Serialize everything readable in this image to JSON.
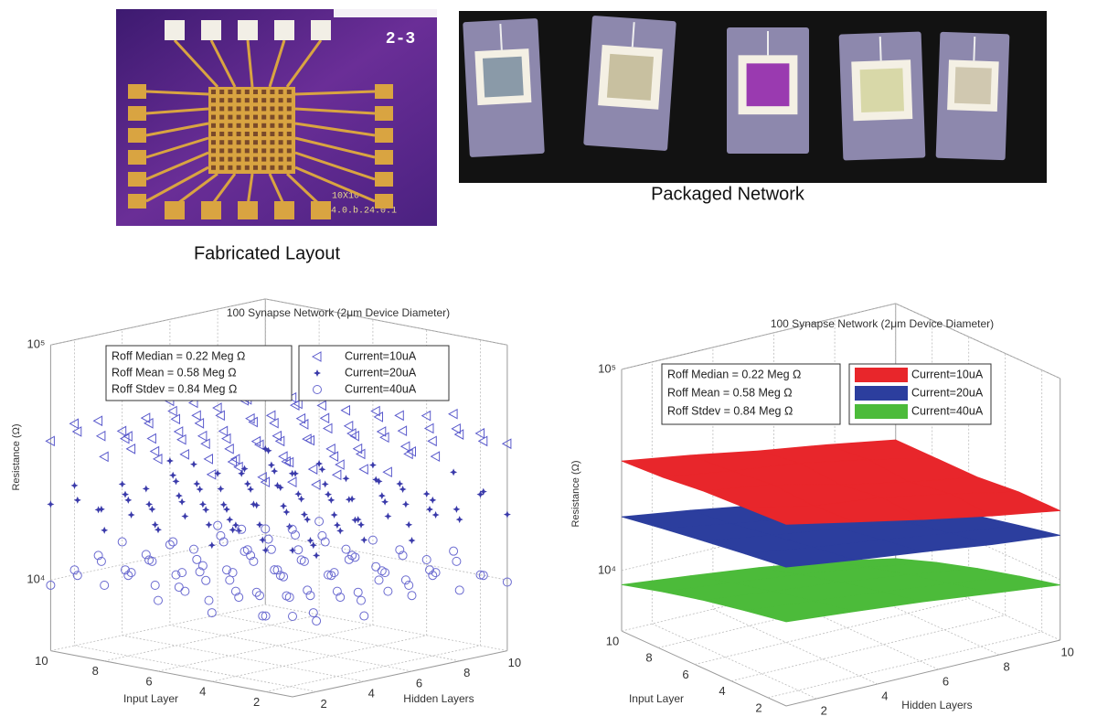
{
  "photos": [
    {
      "caption": "Fabricated Layout",
      "labels": [
        "2-3",
        "10X10",
        "4.0.b.24.0.1"
      ]
    },
    {
      "caption": "Packaged Network"
    }
  ],
  "chart_data": [
    {
      "type": "scatter3d",
      "title": "100 Synapse Network (2μm Device Diameter)",
      "xlabel": "Hidden Layers",
      "ylabel": "Input Layer",
      "zlabel": "Resistance (Ω)",
      "x": [
        1,
        2,
        3,
        4,
        5,
        6,
        7,
        8,
        9,
        10
      ],
      "y": [
        1,
        2,
        3,
        4,
        5,
        6,
        7,
        8,
        9,
        10
      ],
      "xlim": [
        1,
        10
      ],
      "ylim": [
        1,
        10
      ],
      "zlim": [
        5000,
        100000
      ],
      "zscale": "log",
      "xticks": [
        2,
        4,
        6,
        8,
        10
      ],
      "yticks": [
        2,
        4,
        6,
        8,
        10
      ],
      "zticks": [
        {
          "value": 10000,
          "label": "10⁴"
        },
        {
          "value": 100000,
          "label": "10⁵"
        }
      ],
      "grid": true,
      "legend": "upper right",
      "annotations": [
        "Roff Median = 0.22 Meg Ω",
        "Roff   Mean = 0.58 Meg Ω",
        "Roff  Stdev = 0.84 Meg Ω"
      ],
      "series": [
        {
          "name": "Current=10uA",
          "color": "#5b5bcc",
          "marker": "triangle-left",
          "values": [
            [
              41000,
              38000,
              44000,
              40000,
              37000,
              43000,
              39000,
              46000,
              41000,
              38000
            ],
            [
              39000,
              45000,
              40000,
              36000,
              42000,
              47000,
              38000,
              41000,
              44000,
              40000
            ],
            [
              43000,
              37000,
              41000,
              48000,
              39000,
              40000,
              45000,
              37000,
              42000,
              46000
            ],
            [
              38000,
              42000,
              46000,
              39000,
              44000,
              38000,
              41000,
              47000,
              39000,
              43000
            ],
            [
              44000,
              40000,
              37000,
              43000,
              41000,
              46000,
              42000,
              38000,
              45000,
              41000
            ],
            [
              40000,
              46000,
              42000,
              38000,
              47000,
              39000,
              44000,
              42000,
              37000,
              48000
            ],
            [
              42000,
              39000,
              45000,
              41000,
              38000,
              44000,
              40000,
              46000,
              43000,
              39000
            ],
            [
              37000,
              43000,
              40000,
              46000,
              42000,
              37000,
              48000,
              39000,
              41000,
              45000
            ],
            [
              45000,
              41000,
              38000,
              42000,
              45000,
              41000,
              39000,
              43000,
              47000,
              40000
            ],
            [
              39000,
              44000,
              43000,
              37000,
              40000,
              45000,
              42000,
              38000,
              44000,
              42000
            ]
          ]
        },
        {
          "name": "Current=20uA",
          "color": "#3a3aaa",
          "marker": "star",
          "values": [
            [
              21000,
              19000,
              23000,
              20000,
              24000,
              18000,
              22000,
              20000,
              25000,
              19000
            ],
            [
              20000,
              24000,
              19000,
              22000,
              21000,
              25000,
              19000,
              23000,
              20000,
              22000
            ],
            [
              23000,
              20000,
              25000,
              18000,
              22000,
              20000,
              24000,
              21000,
              19000,
              26000
            ],
            [
              19000,
              22000,
              21000,
              24000,
              20000,
              23000,
              18000,
              25000,
              22000,
              20000
            ],
            [
              24000,
              21000,
              19000,
              23000,
              26000,
              19000,
              22000,
              20000,
              23000,
              21000
            ],
            [
              20000,
              25000,
              22000,
              19000,
              21000,
              24000,
              20000,
              22000,
              18000,
              24000
            ],
            [
              22000,
              19000,
              24000,
              21000,
              19000,
              22000,
              25000,
              19000,
              23000,
              20000
            ],
            [
              18000,
              23000,
              20000,
              25000,
              22000,
              18000,
              21000,
              24000,
              21000,
              22000
            ],
            [
              23000,
              20000,
              22000,
              19000,
              24000,
              21000,
              19000,
              22000,
              25000,
              19000
            ],
            [
              21000,
              24000,
              18000,
              22000,
              20000,
              25000,
              23000,
              20000,
              19000,
              23000
            ]
          ]
        },
        {
          "name": "Current=40uA",
          "color": "#6a6ad0",
          "marker": "circle",
          "values": [
            [
              11000,
              10000,
              12000,
              9500,
              11500,
              10500,
              12500,
              10000,
              11000,
              9800
            ],
            [
              10500,
              12000,
              9800,
              11500,
              10000,
              12500,
              10500,
              11000,
              12000,
              10000
            ],
            [
              12000,
              9500,
              11000,
              10500,
              12500,
              9800,
              11500,
              10000,
              10500,
              12000
            ],
            [
              9800,
              11500,
              10500,
              12000,
              10000,
              11000,
              12500,
              9500,
              11500,
              10500
            ],
            [
              11500,
              10000,
              12500,
              9800,
              11000,
              12000,
              10000,
              11500,
              9800,
              11000
            ],
            [
              10000,
              12500,
              11000,
              10500,
              12000,
              10500,
              11000,
              12500,
              10000,
              11500
            ],
            [
              12500,
              10500,
              9800,
              11500,
              10500,
              11500,
              9500,
              11000,
              12000,
              10000
            ],
            [
              10500,
              11000,
              12000,
              10000,
              9800,
              12500,
              11000,
              10500,
              11500,
              12500
            ],
            [
              11000,
              12000,
              10500,
              11000,
              12500,
              10000,
              12000,
              9800,
              10500,
              11000
            ],
            [
              9500,
              10500,
              11500,
              12500,
              10500,
              11000,
              10000,
              12000,
              11000,
              10500
            ]
          ]
        }
      ]
    },
    {
      "type": "surface3d",
      "title": "100 Synapse Network (2μm Device Diameter)",
      "xlabel": "Hidden Layers",
      "ylabel": "Input Layer",
      "zlabel": "Resistance (Ω)",
      "x": [
        1,
        3.25,
        5.5,
        7.75,
        10
      ],
      "y": [
        1,
        3.25,
        5.5,
        7.75,
        10
      ],
      "xlim": [
        1,
        10
      ],
      "ylim": [
        1,
        10
      ],
      "zlim": [
        5000,
        100000
      ],
      "zscale": "log",
      "xticks": [
        2,
        4,
        6,
        8,
        10
      ],
      "yticks": [
        2,
        4,
        6,
        8,
        10
      ],
      "zticks": [
        {
          "value": 10000,
          "label": "10⁴"
        },
        {
          "value": 100000,
          "label": "10⁵"
        }
      ],
      "grid": true,
      "legend": "upper right",
      "annotations": [
        "Roff Median = 0.22 Meg Ω",
        "Roff   Mean = 0.58 Meg Ω",
        "Roff  Stdev = 0.84 Meg Ω"
      ],
      "series": [
        {
          "name": "Current=10uA",
          "color": "#e8262b",
          "values": [
            [
              40000,
              34000,
              29000,
              25000,
              22000
            ],
            [
              39000,
              33000,
              30000,
              26000,
              22000
            ],
            [
              38000,
              34000,
              28000,
              24000,
              21000
            ],
            [
              36000,
              32000,
              29000,
              25000,
              21000
            ],
            [
              35000,
              31000,
              27000,
              24000,
              21000
            ]
          ]
        },
        {
          "name": "Current=20uA",
          "color": "#2c3e9e",
          "values": [
            [
              24500,
              22000,
              20000,
              18000,
              16600
            ],
            [
              23000,
              20500,
              18500,
              16500,
              15000
            ],
            [
              21500,
              19000,
              17000,
              15000,
              13500
            ],
            [
              20000,
              17500,
              15500,
              13500,
              11800
            ],
            [
              18500,
              16500,
              14500,
              12300,
              10200
            ]
          ]
        },
        {
          "name": "Current=40uA",
          "color": "#4cbb3a",
          "values": [
            [
              13100,
              12200,
              11300,
              10300,
              9400
            ],
            [
              12000,
              11100,
              10200,
              9300,
              8400
            ],
            [
              10900,
              10000,
              9200,
              8300,
              7400
            ],
            [
              9700,
              8900,
              8100,
              7300,
              6400
            ],
            [
              8500,
              7800,
              7100,
              6300,
              5400
            ]
          ]
        }
      ]
    }
  ]
}
